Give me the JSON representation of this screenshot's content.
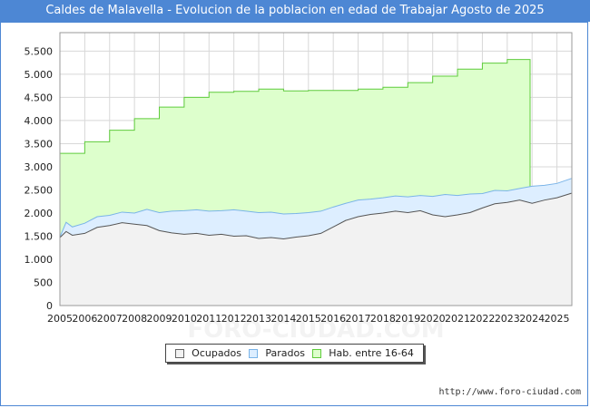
{
  "title": "Caldes de Malavella - Evolucion de la poblacion en edad de Trabajar Agosto de 2025",
  "source": "http://www.foro-ciudad.com",
  "watermark": "FORO-CIUDAD.COM",
  "colors": {
    "ocupados_fill": "#f2f2f2",
    "ocupados_line": "#555555",
    "parados_fill": "#ddeeff",
    "parados_line": "#7ab4e8",
    "hab_fill": "#ddffcc",
    "hab_line": "#5fcc3c",
    "grid": "#d8d8d8",
    "title_bg": "#4d87d4"
  },
  "chart_data": {
    "type": "area",
    "title": "Caldes de Malavella - Evolucion de la poblacion en edad de Trabajar Agosto de 2025",
    "xlabel": "",
    "ylabel": "",
    "xlim": [
      2005,
      2025.6
    ],
    "ylim": [
      0,
      5900
    ],
    "x_ticks": [
      "2005",
      "2006",
      "2007",
      "2008",
      "2009",
      "2010",
      "2011",
      "2012",
      "2013",
      "2014",
      "2015",
      "2016",
      "2017",
      "2018",
      "2019",
      "2020",
      "2021",
      "2022",
      "2023",
      "2024",
      "2025"
    ],
    "y_ticks": [
      0,
      500,
      1000,
      1500,
      2000,
      2500,
      3000,
      3500,
      4000,
      4500,
      5000,
      5500
    ],
    "y_tick_labels": [
      "0",
      "500",
      "1.000",
      "1.500",
      "2.000",
      "2.500",
      "3.000",
      "3.500",
      "4.000",
      "4.500",
      "5.000",
      "5.500"
    ],
    "legend": [
      "Ocupados",
      "Parados",
      "Hab. entre 16-64"
    ],
    "legend_position": "bottom-center",
    "series": [
      {
        "name": "Hab. entre 16-64",
        "step": true,
        "x": [
          2005,
          2006,
          2007,
          2008,
          2009,
          2010,
          2011,
          2012,
          2013,
          2014,
          2015,
          2016,
          2017,
          2018,
          2019,
          2020,
          2021,
          2022,
          2023,
          2023.92
        ],
        "values": [
          3290,
          3540,
          3790,
          4040,
          4290,
          4500,
          4610,
          4630,
          4680,
          4640,
          4650,
          4650,
          4680,
          4720,
          4820,
          4960,
          5110,
          5240,
          5320,
          5320
        ]
      },
      {
        "name": "Parados",
        "x": [
          2005,
          2005.25,
          2005.5,
          2006,
          2006.5,
          2007,
          2007.5,
          2008,
          2008.5,
          2009,
          2009.5,
          2010,
          2010.5,
          2011,
          2011.5,
          2012,
          2012.5,
          2013,
          2013.5,
          2014,
          2014.5,
          2015,
          2015.5,
          2016,
          2016.5,
          2017,
          2017.5,
          2018,
          2018.5,
          2019,
          2019.5,
          2020,
          2020.5,
          2021,
          2021.5,
          2022,
          2022.5,
          2023,
          2023.5,
          2024,
          2024.5,
          2025,
          2025.6
        ],
        "values": [
          1480,
          1800,
          1700,
          1780,
          1920,
          1950,
          2020,
          2000,
          2080,
          2010,
          2040,
          2050,
          2070,
          2040,
          2050,
          2070,
          2040,
          2010,
          2020,
          1980,
          1990,
          2010,
          2040,
          2130,
          2210,
          2280,
          2300,
          2330,
          2370,
          2350,
          2380,
          2360,
          2400,
          2380,
          2410,
          2420,
          2490,
          2480,
          2530,
          2580,
          2600,
          2640,
          2750
        ]
      },
      {
        "name": "Ocupados",
        "x": [
          2005,
          2005.25,
          2005.5,
          2006,
          2006.5,
          2007,
          2007.5,
          2008,
          2008.5,
          2009,
          2009.5,
          2010,
          2010.5,
          2011,
          2011.5,
          2012,
          2012.5,
          2013,
          2013.5,
          2014,
          2014.5,
          2015,
          2015.5,
          2016,
          2016.5,
          2017,
          2017.5,
          2018,
          2018.5,
          2019,
          2019.5,
          2020,
          2020.5,
          2021,
          2021.5,
          2022,
          2022.5,
          2023,
          2023.5,
          2024,
          2024.5,
          2025,
          2025.6
        ],
        "values": [
          1470,
          1600,
          1520,
          1560,
          1690,
          1730,
          1790,
          1760,
          1730,
          1620,
          1570,
          1540,
          1560,
          1520,
          1540,
          1500,
          1510,
          1450,
          1470,
          1440,
          1480,
          1510,
          1560,
          1700,
          1840,
          1920,
          1970,
          2000,
          2040,
          2010,
          2050,
          1960,
          1920,
          1960,
          2010,
          2110,
          2200,
          2230,
          2280,
          2210,
          2280,
          2330,
          2430
        ]
      }
    ]
  }
}
